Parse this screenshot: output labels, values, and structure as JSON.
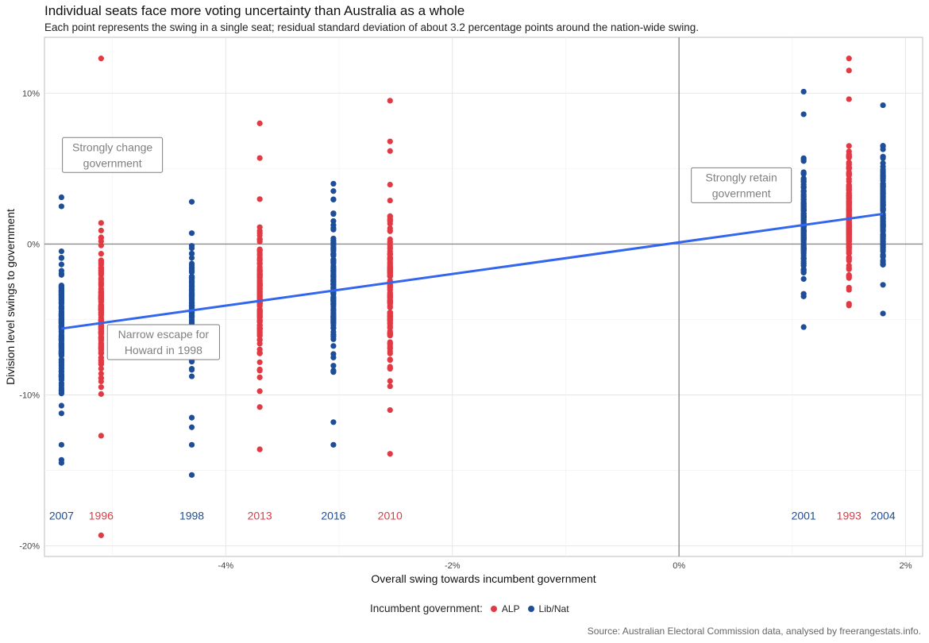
{
  "title": "Individual seats face more voting uncertainty than Australia as a whole",
  "subtitle": "Each point represents the swing in a single seat; residual standard deviation of about 3.2 percentage points around the nation-wide swing.",
  "caption": "Source: Australian Electoral Commission data, analysed by freerangestats.info.",
  "legend": {
    "title": "Incumbent government:",
    "items": [
      {
        "label": "ALP",
        "color": "#E03A45"
      },
      {
        "label": "Lib/Nat",
        "color": "#1F4E99"
      }
    ]
  },
  "colors": {
    "ALP": "#E03A45",
    "Lib/Nat": "#1F4E99",
    "trend": "#3366EE",
    "annotation": "#7F7F7F"
  },
  "chart_data": {
    "type": "scatter",
    "title": "Individual seats face more voting uncertainty than Australia as a whole",
    "xlabel": "Overall swing towards incumbent government",
    "ylabel": "Division level swings to government",
    "xlim": [
      -5.6,
      2.15
    ],
    "ylim": [
      -20.7,
      13.7
    ],
    "x_ticks": [
      {
        "value": -4,
        "label": "-4%"
      },
      {
        "value": -2,
        "label": "-2%"
      },
      {
        "value": 0,
        "label": "0%"
      },
      {
        "value": 2,
        "label": "2%"
      }
    ],
    "y_ticks": [
      {
        "value": -20,
        "label": "-20%"
      },
      {
        "value": -10,
        "label": "-10%"
      },
      {
        "value": 0,
        "label": "0%"
      },
      {
        "value": 10,
        "label": "10%"
      }
    ],
    "grid": true,
    "legend_position": "bottom",
    "reference_lines": {
      "x": 0,
      "y": 0
    },
    "trend_line": {
      "x": [
        -5.45,
        1.8
      ],
      "y": [
        -5.6,
        2.0
      ]
    },
    "elections": [
      {
        "year": "2007",
        "incumbent": "Lib/Nat",
        "x": -5.45,
        "y_min": -14.5,
        "y_max": 3.1,
        "mean": -5.6,
        "sd": 3.0,
        "outliers": [
          -14.5,
          -14.3,
          -13.3,
          2.5,
          3.1
        ]
      },
      {
        "year": "1996",
        "incumbent": "ALP",
        "x": -5.1,
        "y_min": -19.3,
        "y_max": 12.3,
        "mean": -5.0,
        "sd": 3.0,
        "outliers": [
          -19.3,
          -12.7,
          1.4,
          12.3
        ]
      },
      {
        "year": "1998",
        "incumbent": "Lib/Nat",
        "x": -4.3,
        "y_min": -15.3,
        "y_max": 2.8,
        "mean": -4.3,
        "sd": 3.0,
        "outliers": [
          -15.3,
          -13.3,
          -11.5,
          2.8
        ]
      },
      {
        "year": "2013",
        "incumbent": "ALP",
        "x": -3.7,
        "y_min": -13.6,
        "y_max": 8.0,
        "mean": -3.6,
        "sd": 3.0,
        "outliers": [
          -13.6,
          -10.8,
          5.7,
          8.0
        ]
      },
      {
        "year": "2016",
        "incumbent": "Lib/Nat",
        "x": -3.05,
        "y_min": -13.3,
        "y_max": 4.0,
        "mean": -3.1,
        "sd": 3.2,
        "outliers": [
          -13.3,
          -11.8,
          4.0
        ]
      },
      {
        "year": "2010",
        "incumbent": "ALP",
        "x": -2.55,
        "y_min": -13.9,
        "y_max": 9.5,
        "mean": -2.6,
        "sd": 4.0,
        "outliers": [
          -13.9,
          -11.0,
          9.5,
          6.8
        ]
      },
      {
        "year": "2001",
        "incumbent": "Lib/Nat",
        "x": 1.1,
        "y_min": -5.5,
        "y_max": 10.1,
        "mean": 1.2,
        "sd": 2.5,
        "outliers": [
          -5.5,
          -3.3,
          10.1,
          8.6
        ]
      },
      {
        "year": "1993",
        "incumbent": "ALP",
        "x": 1.5,
        "y_min": -5.0,
        "y_max": 12.3,
        "mean": 1.6,
        "sd": 3.0,
        "outliers": [
          12.3,
          11.5,
          9.6
        ]
      },
      {
        "year": "2004",
        "incumbent": "Lib/Nat",
        "x": 1.8,
        "y_min": -4.6,
        "y_max": 9.2,
        "mean": 2.0,
        "sd": 2.5,
        "outliers": [
          -4.6,
          9.2
        ]
      }
    ],
    "annotations": [
      {
        "label": "Strongly change\ngovernment",
        "x": -5.0,
        "y": 5.9
      },
      {
        "label": "Narrow escape for\nHoward in 1998",
        "x": -4.55,
        "y": -6.5
      },
      {
        "label": "Strongly retain\ngovernment",
        "x": 0.55,
        "y": 3.9
      }
    ],
    "series": [
      {
        "name": "ALP",
        "color": "#E03A45"
      },
      {
        "name": "Lib/Nat",
        "color": "#1F4E99"
      }
    ]
  }
}
